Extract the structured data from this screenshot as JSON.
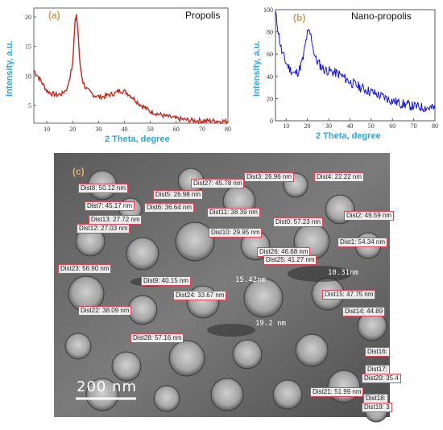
{
  "chart_data": [
    {
      "type": "line",
      "panel_label": "(a)",
      "title": "Propolis",
      "xlabel": "2 Theta, degree",
      "ylabel": "Intensity, a.u.",
      "xlim": [
        5,
        80
      ],
      "xticks": [
        "10",
        "20",
        "30",
        "40",
        "50",
        "60",
        "70",
        "80"
      ],
      "yticks": [
        "20",
        "15",
        "10",
        "5"
      ],
      "line_color": "#c0281c",
      "x": [
        5,
        8,
        10,
        12,
        14,
        16,
        18,
        19,
        20,
        20.5,
        21,
        21.5,
        22,
        22.5,
        23,
        23.5,
        24,
        25,
        26,
        28,
        30,
        32,
        34,
        36,
        38,
        40,
        42,
        44,
        46,
        48,
        50,
        55,
        60,
        65,
        70,
        75,
        80
      ],
      "y": [
        11,
        9,
        7.5,
        7,
        6.8,
        7,
        8,
        10,
        12,
        16,
        19.5,
        20.5,
        18,
        14,
        11.5,
        10,
        9,
        8,
        7.5,
        6.8,
        6.5,
        6.5,
        6.8,
        7,
        7.5,
        7.4,
        6.8,
        6,
        5.2,
        4.6,
        4,
        3.3,
        2.8,
        2.5,
        2.4,
        2.4,
        2.3
      ]
    },
    {
      "type": "line",
      "panel_label": "(b)",
      "title": "Nano-propolis",
      "xlabel": "2 Theta, degree",
      "ylabel": "Intensity, a.u.",
      "xlim": [
        5,
        80
      ],
      "ylim": [
        0,
        100
      ],
      "xticks": [
        "10",
        "20",
        "30",
        "40",
        "50",
        "60",
        "70",
        "80"
      ],
      "yticks": [
        "0",
        "20",
        "40",
        "60",
        "80",
        "100"
      ],
      "line_color": "#1414d2",
      "x": [
        5,
        6,
        7,
        8,
        10,
        12,
        14,
        16,
        18,
        19,
        20,
        21,
        22,
        23,
        24,
        26,
        28,
        30,
        35,
        40,
        45,
        50,
        55,
        60,
        65,
        70,
        75,
        80
      ],
      "y": [
        97,
        85,
        72,
        62,
        52,
        46,
        42,
        45,
        56,
        68,
        78,
        80,
        74,
        63,
        55,
        50,
        46,
        45,
        42,
        35,
        30,
        26,
        22,
        18,
        15,
        13,
        12,
        11
      ]
    }
  ],
  "tem_image": {
    "panel_label": "(c)",
    "scale_bar": "200 nm",
    "inline_labels": [
      "15.42nm",
      "10.31nm",
      "19.2 nm"
    ],
    "measurements": [
      "Dist8: 50.12 nm",
      "Dist5: 26.98 nm",
      "Dist27: 45.78 nm",
      "Dist3: 26.96 nm",
      "Dist4: 22.22 nm",
      "Dist7: 45.17 nm",
      "Dist6: 36.64 nm",
      "Dist11: 38.39 nm",
      "Dist2: 49.59 nm",
      "Dist13: 27.72 nm",
      "Dist0: 57.23 nm",
      "Dist12: 27.03 nm",
      "Dist10: 29.95 nm",
      "Dist1: 54.34 nm",
      "Dist26: 46.68 nm",
      "Dist25: 41.27 nm",
      "Dist23: 56.90 nm",
      "Dist9: 40.15 nm",
      "Dist15: 47.75 nm",
      "Dist24: 33.67 nm",
      "Dist22: 38.09 nm",
      "Dist14: 44.89",
      "Dist28: 57.16 nm",
      "Dist16:",
      "Dist17:",
      "Dist20: 35.4",
      "Dist21: 51.99 nm",
      "Dist18:",
      "Dist19: 3"
    ]
  }
}
